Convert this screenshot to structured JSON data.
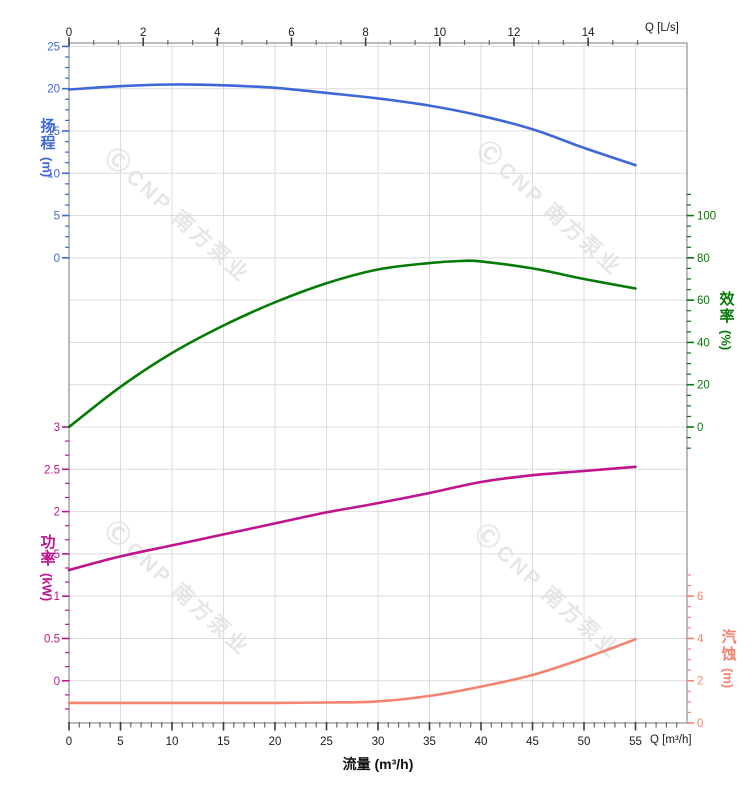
{
  "watermark": {
    "logo": "Ⓒ",
    "text": "CNP 南方泵业"
  },
  "colors": {
    "head": "#3e68d8",
    "efficiency": "#067a06",
    "power": "#c0138e",
    "npsh": "#f4836f",
    "grid": "#dcdcdc",
    "frame": "#8f8f8f",
    "axis_tick": "#3c3c3c",
    "axis_text": "#1a1a1a",
    "watermark": "#e6e6e9"
  },
  "axes": {
    "top": {
      "unit_label": "Q [L/s]",
      "tick_labels": [
        "0",
        "2",
        "4",
        "6",
        "8",
        "10",
        "12",
        "14"
      ]
    },
    "bottom": {
      "unit_label": "Q [m³/h]",
      "axis_title": "流量 (m³/h)",
      "tick_labels": [
        "0",
        "5",
        "10",
        "15",
        "20",
        "25",
        "30",
        "35",
        "40",
        "45",
        "50",
        "55"
      ]
    },
    "left_head": {
      "title": "扬程",
      "unit": "(m)",
      "tick_labels": [
        "25",
        "20",
        "15",
        "10",
        "5",
        "0"
      ]
    },
    "left_power": {
      "title": "功率",
      "unit": "(kW)",
      "tick_labels": [
        "3",
        "2.5",
        "2",
        "1.5",
        "1",
        "0.5",
        "0"
      ]
    },
    "right_efficiency": {
      "title": "效率",
      "unit": "(%)",
      "tick_labels": [
        "100",
        "80",
        "60",
        "40",
        "20",
        "0"
      ]
    },
    "right_npsh": {
      "title": "汽蚀",
      "unit": "(m)",
      "tick_labels": [
        "6",
        "4",
        "2",
        "0"
      ]
    }
  },
  "chart_data": {
    "type": "line",
    "title": "",
    "x_axis": {
      "bottom_label": "流量 (m³/h)",
      "bottom_unit": "Q [m³/h]",
      "top_unit": "Q [L/s]",
      "range_m3h": [
        0,
        60
      ],
      "range_Ls": [
        0,
        16.7
      ],
      "ticks_m3h": [
        0,
        5,
        10,
        15,
        20,
        25,
        30,
        35,
        40,
        45,
        50,
        55
      ],
      "ticks_Ls": [
        0,
        2,
        4,
        6,
        8,
        10,
        12,
        14
      ],
      "grid": true
    },
    "series": [
      {
        "name": "扬程",
        "scale": "head",
        "unit": "m",
        "axis_range": [
          0,
          25
        ],
        "color": "#3e68d8",
        "points": [
          [
            0,
            19.9
          ],
          [
            5,
            20.3
          ],
          [
            10,
            20.5
          ],
          [
            15,
            20.4
          ],
          [
            20,
            20.1
          ],
          [
            25,
            19.5
          ],
          [
            30,
            18.85
          ],
          [
            35,
            18.0
          ],
          [
            40,
            16.8
          ],
          [
            45,
            15.2
          ],
          [
            50,
            13.0
          ],
          [
            55,
            10.95
          ]
        ]
      },
      {
        "name": "效率",
        "scale": "efficiency",
        "unit": "%",
        "axis_range": [
          0,
          100
        ],
        "color": "#067a06",
        "points": [
          [
            0,
            0
          ],
          [
            5,
            19
          ],
          [
            10,
            35
          ],
          [
            15,
            48
          ],
          [
            20,
            59
          ],
          [
            25,
            68
          ],
          [
            30,
            74.5
          ],
          [
            35,
            77.5
          ],
          [
            38,
            78.5
          ],
          [
            40,
            78.3
          ],
          [
            45,
            75
          ],
          [
            50,
            70
          ],
          [
            55,
            65.5
          ]
        ]
      },
      {
        "name": "功率",
        "scale": "power",
        "unit": "kW",
        "axis_range": [
          0,
          3
        ],
        "color": "#c0138e",
        "points": [
          [
            0,
            1.31
          ],
          [
            5,
            1.47
          ],
          [
            10,
            1.6
          ],
          [
            15,
            1.73
          ],
          [
            20,
            1.86
          ],
          [
            25,
            1.99
          ],
          [
            30,
            2.1
          ],
          [
            35,
            2.22
          ],
          [
            40,
            2.35
          ],
          [
            45,
            2.43
          ],
          [
            50,
            2.48
          ],
          [
            55,
            2.53
          ]
        ]
      },
      {
        "name": "汽蚀",
        "scale": "npsh",
        "unit": "m",
        "axis_range": [
          0,
          8
        ],
        "color": "#f4836f",
        "points": [
          [
            0,
            0.95
          ],
          [
            5,
            0.95
          ],
          [
            10,
            0.95
          ],
          [
            15,
            0.95
          ],
          [
            20,
            0.95
          ],
          [
            25,
            0.97
          ],
          [
            30,
            1.02
          ],
          [
            35,
            1.28
          ],
          [
            40,
            1.72
          ],
          [
            45,
            2.27
          ],
          [
            50,
            3.06
          ],
          [
            55,
            3.96
          ]
        ]
      }
    ]
  }
}
